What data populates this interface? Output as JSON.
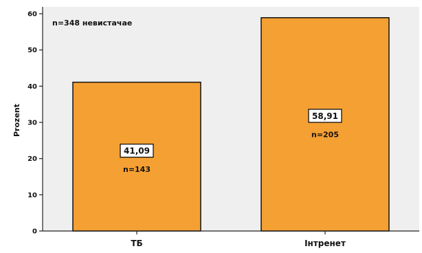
{
  "chart_data": {
    "type": "bar",
    "categories": [
      "ТБ",
      "Інтренет"
    ],
    "values": [
      41.09,
      58.91
    ],
    "value_labels": [
      "41,09",
      "58,91"
    ],
    "n_labels": [
      "n=143",
      "n=205"
    ],
    "annotation": "n=348 невистачае",
    "ylabel": "Prozent",
    "xlabel": "",
    "ylim": [
      0,
      60
    ],
    "yticks": [
      0,
      10,
      20,
      30,
      40,
      50,
      60
    ],
    "grid": false,
    "colors": {
      "bar": "#f5a033",
      "plot_background": "#efefef",
      "axis": "#222222"
    }
  }
}
